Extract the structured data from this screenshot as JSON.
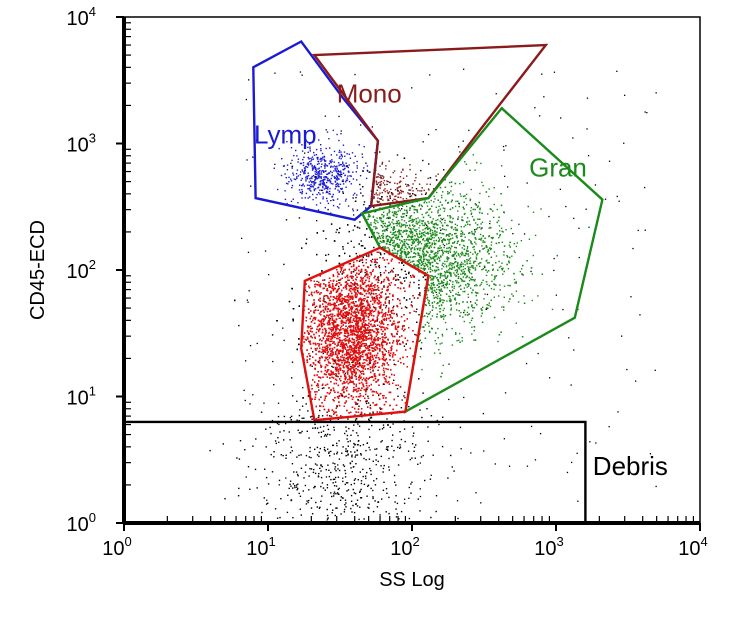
{
  "chart_data": {
    "type": "scatter",
    "xlabel": "SS Log",
    "ylabel": "CD45-ECD",
    "x_scale": "log",
    "y_scale": "log",
    "xlim": [
      1,
      10000
    ],
    "ylim": [
      1,
      10000
    ],
    "x_ticks": [
      {
        "value": 1,
        "base": "10",
        "exp": "0"
      },
      {
        "value": 10,
        "base": "10",
        "exp": "1"
      },
      {
        "value": 100,
        "base": "10",
        "exp": "2"
      },
      {
        "value": 1000,
        "base": "10",
        "exp": "3"
      },
      {
        "value": 10000,
        "base": "10",
        "exp": "4"
      }
    ],
    "y_ticks": [
      {
        "value": 1,
        "base": "10",
        "exp": "0"
      },
      {
        "value": 10,
        "base": "10",
        "exp": "1"
      },
      {
        "value": 100,
        "base": "10",
        "exp": "2"
      },
      {
        "value": 1000,
        "base": "10",
        "exp": "3"
      },
      {
        "value": 10000,
        "base": "10",
        "exp": "4"
      }
    ],
    "grid": false,
    "gates": [
      {
        "name": "Lymp",
        "color": "#1a1ad4",
        "polygon": [
          [
            7.9,
            4000
          ],
          [
            17,
            6400
          ],
          [
            33,
            2300
          ],
          [
            58,
            1050
          ],
          [
            52,
            320
          ],
          [
            40,
            250
          ],
          [
            8.2,
            370
          ]
        ],
        "label_at": [
          8,
          1000
        ]
      },
      {
        "name": "Mono",
        "color": "#8b1a1a",
        "polygon": [
          [
            21,
            5000
          ],
          [
            850,
            6000
          ],
          [
            300,
            1300
          ],
          [
            130,
            370
          ],
          [
            52,
            320
          ],
          [
            58,
            1050
          ]
        ],
        "label_at": [
          30,
          2100
        ]
      },
      {
        "name": "Gran",
        "color": "#1a8a1a",
        "polygon": [
          [
            420,
            1900
          ],
          [
            2100,
            360
          ],
          [
            1350,
            42
          ],
          [
            90,
            7.6
          ],
          [
            130,
            90
          ],
          [
            60,
            150
          ],
          [
            45,
            280
          ],
          [
            130,
            370
          ]
        ],
        "label_at": [
          650,
          550
        ]
      },
      {
        "name": "",
        "color": "#e01010",
        "polygon": [
          [
            18,
            82
          ],
          [
            60,
            150
          ],
          [
            130,
            90
          ],
          [
            90,
            7.6
          ],
          [
            21,
            6.5
          ],
          [
            17,
            24
          ]
        ],
        "label_at": null
      },
      {
        "name": "Debris",
        "color": "#000000",
        "polygon": [
          [
            1,
            6.3
          ],
          [
            1600,
            6.3
          ],
          [
            1600,
            1
          ],
          [
            1,
            1
          ]
        ],
        "label_at": [
          1800,
          2.4
        ]
      }
    ],
    "populations": [
      {
        "gate": "Lymp",
        "color": "#1a1ad4",
        "center_log": [
          1.38,
          2.75
        ],
        "spread_log": [
          0.12,
          0.12
        ],
        "count": 500
      },
      {
        "gate": "Mono",
        "color": "#8b1a1a",
        "center_log": [
          1.83,
          2.58
        ],
        "spread_log": [
          0.18,
          0.12
        ],
        "count": 200
      },
      {
        "gate": "Gran",
        "color": "#1a8a1a",
        "center_log": [
          2.0,
          2.1
        ],
        "spread_log": [
          0.32,
          0.3
        ],
        "count": 2600
      },
      {
        "gate": "",
        "color": "#e01010",
        "center_log": [
          1.58,
          1.52
        ],
        "spread_log": [
          0.17,
          0.32
        ],
        "count": 7000
      },
      {
        "gate": "Debris",
        "color": "#000000",
        "center_log": [
          1.5,
          0.45
        ],
        "spread_log": [
          0.3,
          0.35
        ],
        "count": 550
      }
    ]
  }
}
